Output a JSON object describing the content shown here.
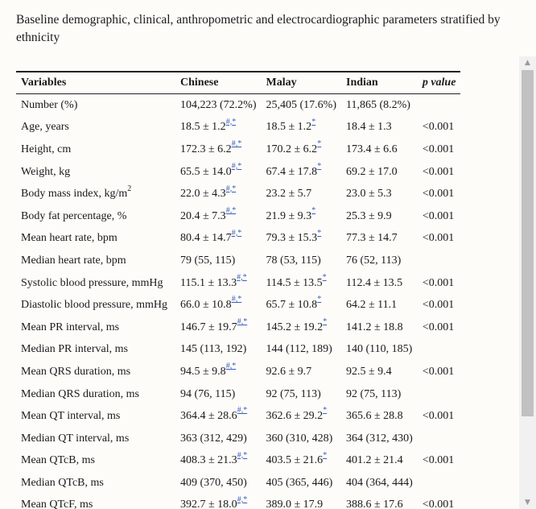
{
  "caption": "Baseline demographic, clinical, anthropometric and electrocardiographic parameters stratified by ethnicity",
  "table": {
    "headers": [
      "Variables",
      "Chinese",
      "Malay",
      "Indian",
      "p value"
    ],
    "rows": [
      {
        "variable": "Number (%)",
        "chinese": "104,223 (72.2%)",
        "chinese_sup": "",
        "malay": "25,405 (17.6%)",
        "malay_sup": "",
        "indian": "11,865 (8.2%)",
        "p": ""
      },
      {
        "variable": "Age, years",
        "chinese": "18.5 ± 1.2",
        "chinese_sup": "#,*",
        "malay": "18.5 ± 1.2",
        "malay_sup": "*",
        "indian": "18.4 ± 1.3",
        "p": "<0.001"
      },
      {
        "variable": "Height, cm",
        "chinese": "172.3 ± 6.2",
        "chinese_sup": "#,*",
        "malay": "170.2 ± 6.2",
        "malay_sup": "*",
        "indian": "173.4 ± 6.6",
        "p": "<0.001"
      },
      {
        "variable": "Weight, kg",
        "chinese": "65.5 ± 14.0",
        "chinese_sup": "#,*",
        "malay": "67.4 ± 17.8",
        "malay_sup": "*",
        "indian": "69.2 ± 17.0",
        "p": "<0.001"
      },
      {
        "variable": "Body mass index, kg/m",
        "variable_sup": "2",
        "chinese": "22.0 ± 4.3",
        "chinese_sup": "#,*",
        "malay": "23.2 ± 5.7",
        "malay_sup": "",
        "indian": "23.0 ± 5.3",
        "p": "<0.001"
      },
      {
        "variable": "Body fat percentage, %",
        "chinese": "20.4 ± 7.3",
        "chinese_sup": "#,*",
        "malay": "21.9 ± 9.3",
        "malay_sup": "*",
        "indian": "25.3 ± 9.9",
        "p": "<0.001"
      },
      {
        "variable": "Mean heart rate, bpm",
        "chinese": "80.4 ± 14.7",
        "chinese_sup": "#,*",
        "malay": "79.3 ± 15.3",
        "malay_sup": "*",
        "indian": "77.3 ± 14.7",
        "p": "<0.001"
      },
      {
        "variable": "Median heart rate, bpm",
        "chinese": "79 (55, 115)",
        "chinese_sup": "",
        "malay": "78 (53, 115)",
        "malay_sup": "",
        "indian": "76 (52, 113)",
        "p": ""
      },
      {
        "variable": "Systolic blood pressure, mmHg",
        "chinese": "115.1 ± 13.3",
        "chinese_sup": "#,*",
        "malay": "114.5 ± 13.5",
        "malay_sup": "*",
        "indian": "112.4 ± 13.5",
        "p": "<0.001"
      },
      {
        "variable": "Diastolic blood pressure, mmHg",
        "chinese": "66.0 ± 10.8",
        "chinese_sup": "#,*",
        "malay": "65.7 ± 10.8",
        "malay_sup": "*",
        "indian": "64.2 ± 11.1",
        "p": "<0.001"
      },
      {
        "variable": "Mean PR interval, ms",
        "chinese": "146.7 ± 19.7",
        "chinese_sup": "#,*",
        "malay": "145.2 ± 19.2",
        "malay_sup": "*",
        "indian": "141.2 ± 18.8",
        "p": "<0.001"
      },
      {
        "variable": "Median PR interval, ms",
        "chinese": "145 (113, 192)",
        "chinese_sup": "",
        "malay": "144 (112, 189)",
        "malay_sup": "",
        "indian": "140 (110, 185)",
        "p": ""
      },
      {
        "variable": "Mean QRS duration, ms",
        "chinese": "94.5 ± 9.8",
        "chinese_sup": "#,*",
        "malay": "92.6 ± 9.7",
        "malay_sup": "",
        "indian": "92.5 ± 9.4",
        "p": "<0.001"
      },
      {
        "variable": "Median QRS duration, ms",
        "chinese": "94 (76, 115)",
        "chinese_sup": "",
        "malay": "92 (75, 113)",
        "malay_sup": "",
        "indian": "92 (75, 113)",
        "p": ""
      },
      {
        "variable": "Mean QT interval, ms",
        "chinese": "364.4 ± 28.6",
        "chinese_sup": "#,*",
        "malay": "362.6 ± 29.2",
        "malay_sup": "*",
        "indian": "365.6 ± 28.8",
        "p": "<0.001"
      },
      {
        "variable": "Median QT interval, ms",
        "chinese": "363 (312, 429)",
        "chinese_sup": "",
        "malay": "360 (310, 428)",
        "malay_sup": "",
        "indian": "364 (312, 430)",
        "p": ""
      },
      {
        "variable": "Mean QTcB, ms",
        "chinese": "408.3 ± 21.3",
        "chinese_sup": "#,*",
        "malay": "403.5 ± 21.6",
        "malay_sup": "*",
        "indian": "401.2 ± 21.4",
        "p": "<0.001"
      },
      {
        "variable": "Median QTcB, ms",
        "chinese": "409 (370, 450)",
        "chinese_sup": "",
        "malay": "405 (365, 446)",
        "malay_sup": "",
        "indian": "404 (364, 444)",
        "p": ""
      },
      {
        "variable": "Mean QTcF, ms",
        "chinese": "392.7 ± 18.0",
        "chinese_sup": "#,*",
        "malay": "389.0 ± 17.9",
        "malay_sup": "",
        "indian": "388.6 ± 17.6",
        "p": "<0.001"
      }
    ]
  },
  "scrollbar": {
    "up_icon": "triangle-up",
    "down_icon": "triangle-down"
  }
}
